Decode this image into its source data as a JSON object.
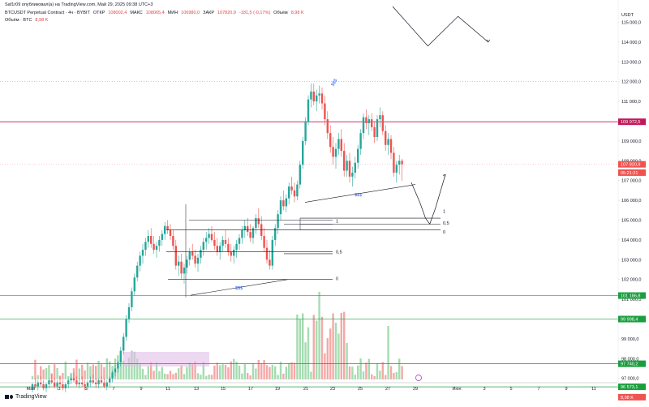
{
  "header": {
    "line1": "Saf1r09 опубликовал(а) на TradingView.com, Май 29, 2025 09:38 UTC+3",
    "symbol": "BTCUSDT Perpetual Contract · 4ч · BYBIT",
    "open_label": "ОТКР",
    "open": "108002,4",
    "high_label": "МАКС",
    "high": "108065,4",
    "low_label": "МИН",
    "low": "106980,0",
    "close_label": "ЗАКР",
    "close": "107820,9",
    "change": "-181,5 (-0,17%)",
    "vol_label": "Объём",
    "vol": "8,98 K",
    "line3_label": "Объём · BTC",
    "line3_value": "8,98 K"
  },
  "axis_unit": "USDT",
  "footer": {
    "brand": "TradingView"
  },
  "colors": {
    "up": "#26a69a",
    "down": "#ef5350",
    "up_light": "#a5dcb0",
    "down_light": "#f4a9a7",
    "resistance": "#c2185b",
    "support": "#1b9e3e",
    "accent": "#2962ff"
  },
  "chart_data": {
    "type": "candlestick",
    "y_ticks": [
      "115 000,0",
      "114 000,0",
      "113 000,0",
      "112 000,0",
      "111 000,0",
      "110 000,0",
      "109 000,0",
      "108 000,0",
      "107 000,0",
      "106 000,0",
      "105 000,0",
      "104 000,0",
      "103 000,0",
      "102 000,0",
      "101 000,0",
      "100 000,0",
      "99 000,0",
      "98 000,0",
      "97 000,0"
    ],
    "x_ticks": [
      "Май",
      "3",
      "5",
      "7",
      "9",
      "11",
      "13",
      "15",
      "17",
      "19",
      "21",
      "23",
      "25",
      "27",
      "29",
      "Июн",
      "3",
      "5",
      "7",
      "9",
      "11"
    ],
    "price_labels": [
      {
        "text": "109 972,5",
        "price": 109972.5,
        "kind": "resistance"
      },
      {
        "text": "107 820,9",
        "price": 107820.9,
        "kind": "last"
      },
      {
        "text": "05:21:21",
        "price": 107400,
        "kind": "countdown"
      },
      {
        "text": "101 186,8",
        "price": 101186.8,
        "kind": "support"
      },
      {
        "text": "99 998,4",
        "price": 99998.4,
        "kind": "support"
      },
      {
        "text": "97 740,2",
        "price": 97740.2,
        "kind": "support"
      },
      {
        "text": "96 573,1",
        "price": 96573.1,
        "kind": "support"
      },
      {
        "text": "8,98 K",
        "price": 96050,
        "kind": "volume"
      }
    ],
    "horizontal_lines": [
      {
        "price": 109972.5,
        "kind": "resistance"
      },
      {
        "price": 101186.8,
        "kind": "support"
      },
      {
        "price": 99998.4,
        "kind": "support"
      },
      {
        "price": 97740.2,
        "kind": "support"
      },
      {
        "price": 96573.1,
        "kind": "support"
      }
    ],
    "fib_sets": [
      {
        "labels": [
          "1",
          "0,5",
          "0"
        ],
        "prices": [
          104800,
          103300,
          102000
        ]
      },
      {
        "labels": [
          "1",
          "0,5",
          "0"
        ],
        "prices": [
          105100,
          104800,
          104500
        ]
      }
    ],
    "annotations": [
      "$$$",
      "$$$",
      "$$$"
    ],
    "candles": [
      [
        96500,
        96800,
        96300,
        96700
      ],
      [
        96700,
        97000,
        96500,
        96600
      ],
      [
        96600,
        96900,
        96400,
        96800
      ],
      [
        96800,
        97100,
        96600,
        96700
      ],
      [
        96700,
        96900,
        96400,
        96500
      ],
      [
        96500,
        96800,
        96300,
        96700
      ],
      [
        96700,
        97000,
        96500,
        96900
      ],
      [
        96900,
        97200,
        96700,
        96800
      ],
      [
        96800,
        97000,
        96500,
        96600
      ],
      [
        96600,
        96900,
        96400,
        96800
      ],
      [
        96800,
        97100,
        96600,
        96700
      ],
      [
        96700,
        96900,
        96400,
        96500
      ],
      [
        96500,
        96800,
        96300,
        96700
      ],
      [
        96700,
        97000,
        96500,
        96900
      ],
      [
        96900,
        97200,
        96700,
        97000
      ],
      [
        97000,
        97300,
        96800,
        96900
      ],
      [
        96900,
        97100,
        96600,
        96700
      ],
      [
        96700,
        97000,
        96500,
        96800
      ],
      [
        96800,
        97100,
        96600,
        96700
      ],
      [
        96700,
        96900,
        96400,
        96600
      ],
      [
        96600,
        96900,
        96400,
        96800
      ],
      [
        96800,
        97100,
        96600,
        96900
      ],
      [
        96900,
        97200,
        96700,
        96800
      ],
      [
        96800,
        97000,
        96500,
        96700
      ],
      [
        96700,
        97000,
        96500,
        96900
      ],
      [
        96900,
        97100,
        96700,
        96800
      ],
      [
        96800,
        97000,
        96500,
        96600
      ],
      [
        96600,
        96900,
        96400,
        96800
      ],
      [
        96800,
        97100,
        96600,
        97000
      ],
      [
        97000,
        97400,
        96800,
        97300
      ],
      [
        97300,
        97700,
        97100,
        97500
      ],
      [
        97500,
        97900,
        97300,
        97800
      ],
      [
        97800,
        98600,
        97600,
        98400
      ],
      [
        98400,
        99300,
        98200,
        99100
      ],
      [
        99100,
        100200,
        98900,
        100000
      ],
      [
        100000,
        100800,
        99800,
        100600
      ],
      [
        100600,
        101600,
        100400,
        101400
      ],
      [
        101400,
        102300,
        101200,
        102100
      ],
      [
        102100,
        102900,
        101900,
        102700
      ],
      [
        102700,
        103400,
        102400,
        103200
      ],
      [
        103200,
        103800,
        102800,
        103500
      ],
      [
        103500,
        104100,
        103200,
        103900
      ],
      [
        103900,
        104500,
        103600,
        104200
      ],
      [
        104200,
        104600,
        103600,
        103800
      ],
      [
        103800,
        104200,
        103300,
        103500
      ],
      [
        103500,
        103900,
        103100,
        103700
      ],
      [
        103700,
        104200,
        103400,
        104000
      ],
      [
        104000,
        104500,
        103700,
        104300
      ],
      [
        104300,
        104900,
        104000,
        104700
      ],
      [
        104700,
        105000,
        104300,
        104500
      ],
      [
        104500,
        104800,
        104000,
        104200
      ],
      [
        104200,
        104500,
        103500,
        103700
      ],
      [
        103700,
        104000,
        102500,
        102700
      ],
      [
        102700,
        103200,
        102200,
        102900
      ],
      [
        102900,
        103300,
        102000,
        102300
      ],
      [
        102300,
        102800,
        101800,
        102600
      ],
      [
        102600,
        103200,
        102300,
        103000
      ],
      [
        103000,
        103600,
        102700,
        103400
      ],
      [
        103400,
        103800,
        103000,
        103200
      ],
      [
        103200,
        103500,
        102600,
        102800
      ],
      [
        102800,
        103300,
        102400,
        103100
      ],
      [
        103100,
        103700,
        102800,
        103500
      ],
      [
        103500,
        104100,
        103200,
        103900
      ],
      [
        103900,
        104400,
        103500,
        104100
      ],
      [
        104100,
        104600,
        103800,
        104300
      ],
      [
        104300,
        104700,
        103900,
        104000
      ],
      [
        104000,
        104400,
        103500,
        103700
      ],
      [
        103700,
        104100,
        103200,
        103400
      ],
      [
        103400,
        103900,
        103000,
        103700
      ],
      [
        103700,
        104200,
        103400,
        104000
      ],
      [
        104000,
        104500,
        103600,
        103800
      ],
      [
        103800,
        104100,
        103200,
        103400
      ],
      [
        103400,
        103800,
        102900,
        103200
      ],
      [
        103200,
        103700,
        102800,
        103500
      ],
      [
        103500,
        104000,
        103100,
        103800
      ],
      [
        103800,
        104300,
        103500,
        104100
      ],
      [
        104100,
        104700,
        103800,
        104500
      ],
      [
        104500,
        105000,
        104100,
        104700
      ],
      [
        104700,
        105100,
        104200,
        104400
      ],
      [
        104400,
        104800,
        103900,
        104100
      ],
      [
        104100,
        104700,
        103800,
        104600
      ],
      [
        104600,
        105300,
        104300,
        105100
      ],
      [
        105100,
        105600,
        104600,
        104800
      ],
      [
        104800,
        105200,
        104000,
        104200
      ],
      [
        104200,
        104600,
        103400,
        103600
      ],
      [
        103600,
        104000,
        102800,
        103000
      ],
      [
        103000,
        103500,
        102500,
        102700
      ],
      [
        102700,
        104200,
        102500,
        104000
      ],
      [
        104000,
        104800,
        103700,
        104600
      ],
      [
        104600,
        105500,
        104300,
        105300
      ],
      [
        105300,
        106200,
        105000,
        106000
      ],
      [
        106000,
        106500,
        105500,
        105700
      ],
      [
        105700,
        106300,
        105400,
        106100
      ],
      [
        106100,
        106900,
        105800,
        106700
      ],
      [
        106700,
        107200,
        106300,
        106500
      ],
      [
        106500,
        106900,
        105900,
        106200
      ],
      [
        106200,
        107000,
        106000,
        106800
      ],
      [
        106800,
        108000,
        106600,
        107800
      ],
      [
        107800,
        109200,
        107600,
        109000
      ],
      [
        109000,
        110200,
        108800,
        110000
      ],
      [
        110000,
        111300,
        109800,
        111100
      ],
      [
        111100,
        111900,
        110700,
        111500
      ],
      [
        111500,
        111900,
        110800,
        111000
      ],
      [
        111000,
        111600,
        110500,
        111300
      ],
      [
        111300,
        111800,
        110900,
        111400
      ],
      [
        111400,
        111700,
        110600,
        110900
      ],
      [
        110900,
        111300,
        109800,
        110100
      ],
      [
        110100,
        110500,
        109100,
        109400
      ],
      [
        109400,
        109800,
        108400,
        108700
      ],
      [
        108700,
        109200,
        107800,
        108200
      ],
      [
        108200,
        108900,
        107600,
        108600
      ],
      [
        108600,
        109400,
        108300,
        109100
      ],
      [
        109100,
        109600,
        108200,
        108500
      ],
      [
        108500,
        108900,
        107200,
        107500
      ],
      [
        107500,
        108300,
        107200,
        108000
      ],
      [
        108000,
        108400,
        106900,
        107200
      ],
      [
        107200,
        107700,
        106700,
        107400
      ],
      [
        107400,
        108200,
        107100,
        107900
      ],
      [
        107900,
        108800,
        107600,
        108600
      ],
      [
        108600,
        109600,
        108300,
        109400
      ],
      [
        109400,
        110400,
        109100,
        110200
      ],
      [
        110200,
        110600,
        109600,
        109900
      ],
      [
        109900,
        110300,
        109300,
        110100
      ],
      [
        110100,
        110400,
        109500,
        109700
      ],
      [
        109700,
        110000,
        108900,
        109200
      ],
      [
        109200,
        110300,
        109000,
        110100
      ],
      [
        110100,
        110700,
        109700,
        110300
      ],
      [
        110300,
        110500,
        109300,
        109500
      ],
      [
        109500,
        109800,
        108500,
        108800
      ],
      [
        108800,
        109400,
        108300,
        109100
      ],
      [
        109100,
        109300,
        108100,
        108400
      ],
      [
        108400,
        108700,
        107200,
        107400
      ],
      [
        107400,
        108000,
        106900,
        107800
      ],
      [
        107800,
        108300,
        107300,
        108000
      ],
      [
        108000,
        108100,
        107000,
        107820
      ]
    ],
    "forecast_path": [
      [
        0,
        106900
      ],
      [
        6,
        105900
      ],
      [
        10,
        105100
      ],
      [
        13,
        104800
      ],
      [
        17,
        105600
      ],
      [
        24,
        107300
      ]
    ],
    "forecast_upper": [
      [
        0,
        115800
      ],
      [
        7,
        113800
      ],
      [
        13,
        115300
      ],
      [
        19,
        114000
      ]
    ]
  }
}
